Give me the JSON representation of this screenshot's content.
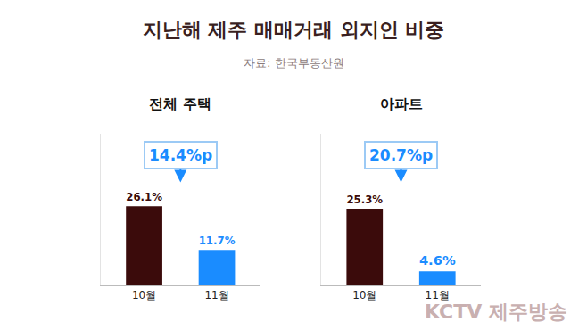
{
  "title": "지난해 제주 매매거래 외지인 비중",
  "subtitle": "자료: 한국부동산원",
  "watermark": "KCTV 제주방송",
  "chart_data": [
    {
      "type": "bar",
      "title": "전체 주택",
      "categories": [
        "10월",
        "11월"
      ],
      "values": [
        26.1,
        11.7
      ],
      "value_labels": [
        "26.1%",
        "11.7%"
      ],
      "colors": [
        "#3b0b0b",
        "#1a8cff"
      ],
      "data_labels": true,
      "tick_labels": "x",
      "ylim": [
        0,
        50
      ],
      "annotation": "14.4%p"
    },
    {
      "type": "bar",
      "title": "아파트",
      "categories": [
        "10월",
        "11월"
      ],
      "values": [
        25.3,
        4.6
      ],
      "value_labels": [
        "25.3%",
        "4.6%"
      ],
      "colors": [
        "#3b0b0b",
        "#1a8cff"
      ],
      "data_labels": true,
      "tick_labels": "x",
      "ylim": [
        0,
        50
      ],
      "annotation": "20.7%p"
    }
  ]
}
